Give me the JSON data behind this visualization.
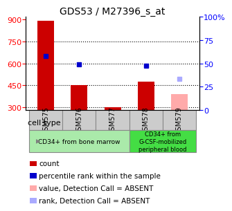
{
  "title": "GDS53 / M27396_s_at",
  "samples": [
    "GSM575",
    "GSM576",
    "GSM577",
    "GSM578",
    "GSM579"
  ],
  "bar_values": [
    893,
    452,
    300,
    475,
    390
  ],
  "bar_colors": [
    "#cc0000",
    "#cc0000",
    "#cc0000",
    "#cc0000",
    "#ffaaaa"
  ],
  "dot_values": [
    650,
    592,
    null,
    582,
    495
  ],
  "dot_colors": [
    "#0000cc",
    "#0000cc",
    null,
    "#0000cc",
    "#aaaaff"
  ],
  "ylim_left": [
    280,
    920
  ],
  "ylim_right": [
    0,
    100
  ],
  "yticks_left": [
    300,
    450,
    600,
    750,
    900
  ],
  "yticks_right": [
    0,
    25,
    50,
    75,
    100
  ],
  "ytick_labels_right": [
    "0",
    "25",
    "50",
    "75",
    "100%"
  ],
  "group1_label": "CD34+ from bone marrow",
  "group2_label": "CD34+ from\nG-CSF-mobilized\nperipheral blood",
  "group1_color": "#aaeaaa",
  "group2_color": "#44dd44",
  "cell_type_label": "cell type",
  "legend_items": [
    {
      "label": "count",
      "color": "#cc0000"
    },
    {
      "label": "percentile rank within the sample",
      "color": "#0000cc"
    },
    {
      "label": "value, Detection Call = ABSENT",
      "color": "#ffaaaa"
    },
    {
      "label": "rank, Detection Call = ABSENT",
      "color": "#aaaaff"
    }
  ]
}
